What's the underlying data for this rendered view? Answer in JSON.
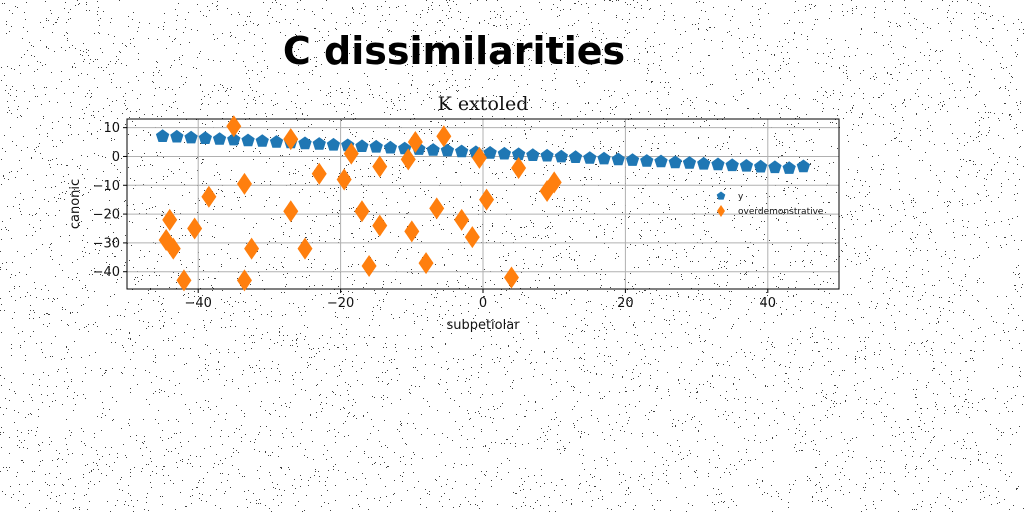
{
  "chart_data": {
    "type": "scatter",
    "suptitle": "C dissimilarities",
    "title": "K extoled",
    "xlabel": "subpetiolar",
    "ylabel": "canonic",
    "xlim": [
      -50,
      50
    ],
    "ylim": [
      -46,
      13
    ],
    "xticks": [
      -40,
      -20,
      0,
      20,
      40
    ],
    "yticks": [
      10,
      0,
      -10,
      -20,
      -30,
      -40
    ],
    "grid": true,
    "legend_position": "right",
    "series": [
      {
        "name": "y",
        "marker": "pentagon",
        "color": "#1f77b4",
        "x": [
          -45,
          -43,
          -41,
          -39,
          -37,
          -35,
          -33,
          -31,
          -29,
          -27,
          -25,
          -23,
          -21,
          -19,
          -17,
          -15,
          -13,
          -11,
          -9,
          -7,
          -5,
          -3,
          -1,
          1,
          3,
          5,
          7,
          9,
          11,
          13,
          15,
          17,
          19,
          21,
          23,
          25,
          27,
          29,
          31,
          33,
          35,
          37,
          39,
          41,
          43,
          45
        ],
        "y": [
          7,
          6.8,
          6.5,
          6.3,
          6.0,
          5.8,
          5.5,
          5.3,
          5.0,
          4.8,
          4.5,
          4.3,
          4.0,
          3.8,
          3.5,
          3.3,
          3.0,
          2.7,
          2.5,
          2.2,
          2.0,
          1.7,
          1.4,
          1.2,
          0.9,
          0.7,
          0.4,
          0.2,
          -0.1,
          -0.3,
          -0.6,
          -0.8,
          -1.1,
          -1.3,
          -1.6,
          -1.8,
          -2.1,
          -2.3,
          -2.6,
          -2.8,
          -3.1,
          -3.3,
          -3.6,
          -3.8,
          -4.1,
          -3.5
        ]
      },
      {
        "name": "overdemonstrative",
        "marker": "diamond",
        "color": "#ff7f0e",
        "x": [
          -44.5,
          -44,
          -43.5,
          -42,
          -40.5,
          -38.5,
          -35,
          -33.5,
          -33.5,
          -32.5,
          -27,
          -27,
          -25,
          -23,
          -19.5,
          -18.5,
          -17,
          -16,
          -14.5,
          -14.5,
          -10.5,
          -10,
          -9.5,
          -8,
          -6.5,
          -5.5,
          -3,
          -1.5,
          -0.5,
          0.5,
          4,
          5,
          9,
          10
        ],
        "y": [
          -29,
          -22,
          -32,
          -43,
          -25,
          -14,
          10.5,
          -9.5,
          -43,
          -32,
          6,
          -19,
          -32,
          -6,
          -8,
          1,
          -19,
          -38,
          -3.5,
          -24,
          -1,
          -26,
          5,
          -37,
          -18,
          7,
          -22,
          -28,
          -0.5,
          -15,
          -42,
          -4,
          -12,
          -9
        ]
      }
    ]
  }
}
